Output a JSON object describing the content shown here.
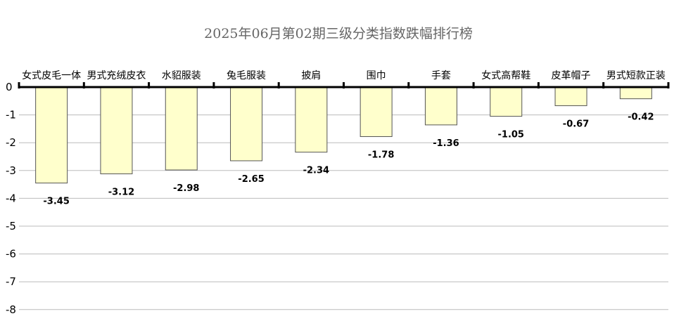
{
  "chart_data": {
    "type": "bar",
    "title": "2025年06月第02期三级分类指数跌幅排行榜",
    "xlabel": "",
    "ylabel": "",
    "categories": [
      "女式皮毛一体",
      "男式充绒皮衣",
      "水貂服装",
      "兔毛服装",
      "披肩",
      "围巾",
      "手套",
      "女式高帮鞋",
      "皮革帽子",
      "男式短款正装"
    ],
    "values": [
      -3.45,
      -3.12,
      -2.98,
      -2.65,
      -2.34,
      -1.78,
      -1.36,
      -1.05,
      -0.67,
      -0.42
    ],
    "value_labels": [
      "-3.45",
      "-3.12",
      "-2.98",
      "-2.65",
      "-2.34",
      "-1.78",
      "-1.36",
      "-1.05",
      "-0.67",
      "-0.42"
    ],
    "ylim": [
      -8,
      0
    ],
    "yticks": [
      "0",
      "-1",
      "-2",
      "-3",
      "-4",
      "-5",
      "-6",
      "-7",
      "-8"
    ],
    "grid": true,
    "legend": "none",
    "colors": {
      "bar_fill": "#FFFFCC",
      "bar_stroke": "#555555",
      "grid": "#BBBBBB",
      "axis": "#000000",
      "title": "#666666"
    }
  }
}
